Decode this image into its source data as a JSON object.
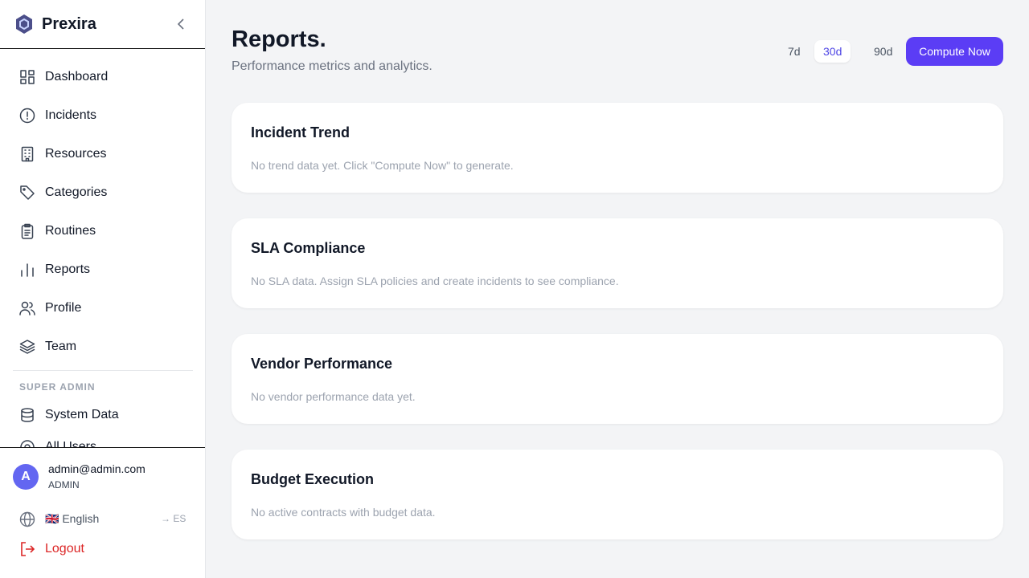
{
  "sidebar": {
    "brand": "Prexira",
    "nav": [
      "Dashboard",
      "Incidents",
      "Resources",
      "Categories",
      "Routines",
      "Reports",
      "Profile",
      "Team"
    ],
    "section_label": "SUPER ADMIN",
    "admin_nav": [
      "System Data",
      "All Users"
    ],
    "user": {
      "initial": "A",
      "email": "admin@admin.com",
      "role": "ADMIN"
    },
    "language": {
      "current": "🇬🇧 English",
      "switch": "→ ES"
    },
    "logout": "Logout"
  },
  "header": {
    "title": "Reports.",
    "subtitle": "Performance metrics and analytics.",
    "ranges": [
      "7d",
      "30d",
      "90d"
    ],
    "action": "Compute Now"
  },
  "cards": [
    {
      "title": "Incident Trend",
      "text": "No trend data yet. Click \"Compute Now\" to generate."
    },
    {
      "title": "SLA Compliance",
      "text": "No SLA data. Assign SLA policies and create incidents to see compliance."
    },
    {
      "title": "Vendor Performance",
      "text": "No vendor performance data yet."
    },
    {
      "title": "Budget Execution",
      "text": "No active contracts with budget data."
    }
  ]
}
